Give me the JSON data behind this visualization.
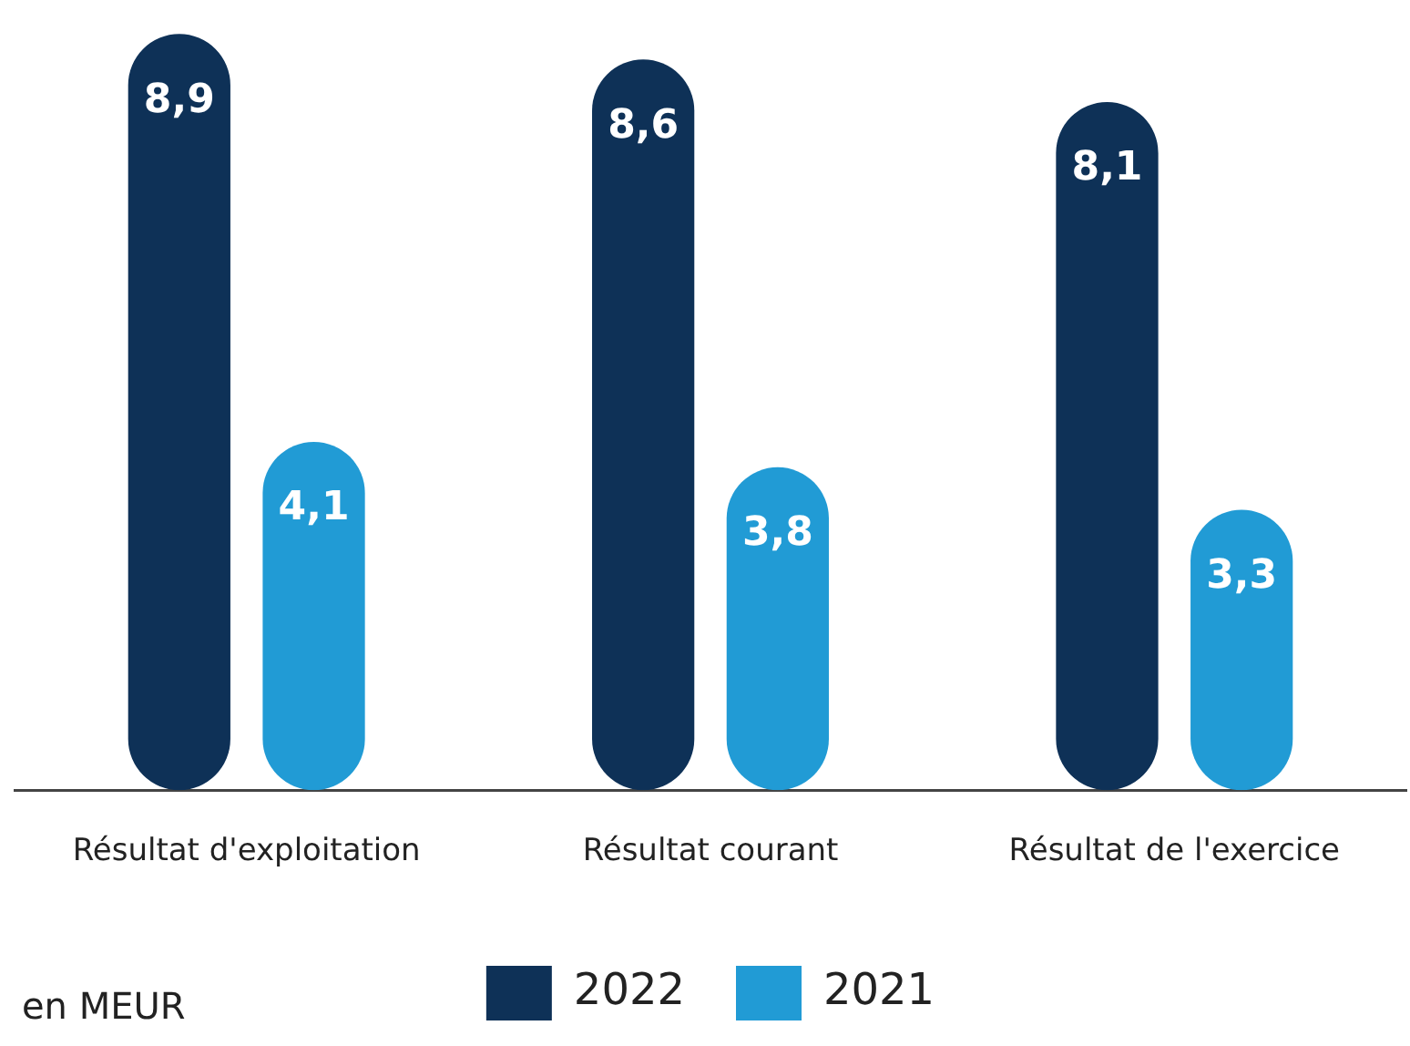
{
  "chart_data": {
    "type": "bar",
    "categories": [
      "Résultat d'exploitation",
      "Résultat courant",
      "Résultat de l'exercice"
    ],
    "series": [
      {
        "name": "2022",
        "color": "#0e3157",
        "values": [
          8.9,
          8.6,
          8.1
        ],
        "value_labels": [
          "8,9",
          "8,6",
          "8,1"
        ]
      },
      {
        "name": "2021",
        "color": "#219bd5",
        "values": [
          4.1,
          3.8,
          3.3
        ],
        "value_labels": [
          "4,1",
          "3,8",
          "3,3"
        ]
      }
    ],
    "annotations": [
      "en MEUR"
    ],
    "legend": "bottom",
    "grid": false
  }
}
